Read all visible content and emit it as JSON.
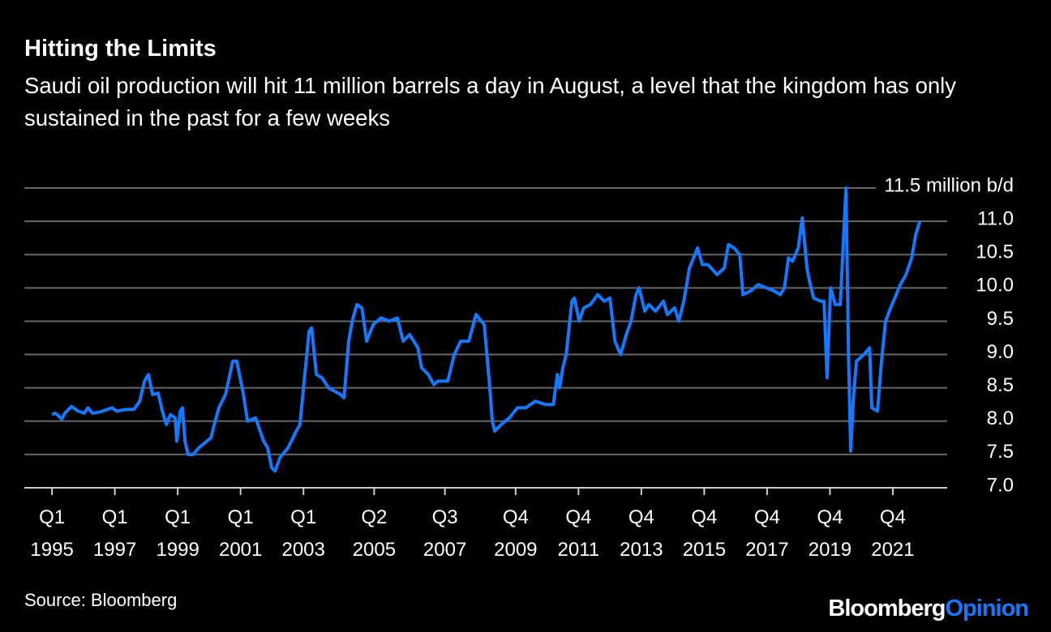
{
  "chart_data": {
    "type": "line",
    "title": "Hitting the Limits",
    "subtitle": "Saudi oil production will hit 11 million barrels a day in August, a level that the kingdom has only sustained in the past for a few weeks",
    "source": "Source: Bloomberg",
    "logo": {
      "brand": "Bloomberg",
      "section": "Opinion"
    },
    "x": [
      1995.0,
      1995.1,
      1995.21,
      1995.31,
      1995.41,
      1995.62,
      1995.83,
      1996.03,
      1996.14,
      1996.29,
      1996.55,
      1996.91,
      1997.06,
      1997.27,
      1997.61,
      1997.79,
      1997.94,
      1998.07,
      1998.2,
      1998.38,
      1998.51,
      1998.64,
      1998.77,
      1998.92,
      1998.97,
      1999.08,
      1999.15,
      1999.23,
      1999.33,
      1999.49,
      1999.67,
      1999.93,
      2000.06,
      2000.19,
      2000.31,
      2000.52,
      2000.75,
      2000.88,
      2001.09,
      2001.22,
      2001.48,
      2001.73,
      2001.86,
      2001.99,
      2002.1,
      2002.25,
      2002.51,
      2002.77,
      2002.89,
      2003.02,
      2003.18,
      2003.26,
      2003.41,
      2003.59,
      2003.8,
      2004.18,
      2004.29,
      2004.44,
      2004.55,
      2004.7,
      2004.86,
      2005.01,
      2005.22,
      2005.47,
      2005.73,
      2005.99,
      2006.17,
      2006.38,
      2006.64,
      2006.76,
      2006.97,
      2007.15,
      2007.28,
      2007.59,
      2007.8,
      2008.0,
      2008.26,
      2008.49,
      2008.75,
      2008.91,
      2009.01,
      2009.09,
      2009.29,
      2009.55,
      2009.81,
      2010.07,
      2010.38,
      2010.69,
      2010.95,
      2011.08,
      2011.15,
      2011.25,
      2011.36,
      2011.54,
      2011.62,
      2011.77,
      2011.92,
      2012.13,
      2012.36,
      2012.57,
      2012.75,
      2012.91,
      2013.09,
      2013.27,
      2013.42,
      2013.58,
      2013.68,
      2013.86,
      2013.99,
      2014.2,
      2014.45,
      2014.58,
      2014.81,
      2014.94,
      2015.1,
      2015.28,
      2015.41,
      2015.54,
      2015.69,
      2015.87,
      2016.16,
      2016.39,
      2016.52,
      2016.7,
      2016.88,
      2016.98,
      2017.21,
      2017.47,
      2017.73,
      2017.99,
      2018.17,
      2018.3,
      2018.43,
      2018.56,
      2018.74,
      2018.87,
      2019.02,
      2019.1,
      2019.23,
      2019.46,
      2019.56,
      2019.66,
      2019.77,
      2019.92,
      2020.08,
      2020.26,
      2020.34,
      2020.41,
      2020.49,
      2020.59,
      2020.83,
      2021.01,
      2021.08,
      2021.26,
      2021.39,
      2021.52,
      2021.68,
      2021.86,
      2021.99,
      2022.17,
      2022.35,
      2022.48,
      2022.61
    ],
    "series": [
      {
        "name": "Saudi oil production",
        "color": "#1479ff",
        "values": [
          8.1,
          8.12,
          8.08,
          8.03,
          8.12,
          8.22,
          8.15,
          8.12,
          8.2,
          8.12,
          8.14,
          8.2,
          8.15,
          8.17,
          8.18,
          8.3,
          8.6,
          8.7,
          8.4,
          8.42,
          8.15,
          7.95,
          8.1,
          8.05,
          7.7,
          8.15,
          8.2,
          7.7,
          7.5,
          7.5,
          7.6,
          7.7,
          7.75,
          8.0,
          8.2,
          8.4,
          8.9,
          8.9,
          8.4,
          8.0,
          8.05,
          7.7,
          7.6,
          7.3,
          7.25,
          7.45,
          7.6,
          7.85,
          7.95,
          8.6,
          9.35,
          9.4,
          8.7,
          8.65,
          8.5,
          8.4,
          8.35,
          9.2,
          9.5,
          9.75,
          9.7,
          9.2,
          9.45,
          9.55,
          9.5,
          9.55,
          9.2,
          9.3,
          9.1,
          8.8,
          8.7,
          8.55,
          8.6,
          8.6,
          9.0,
          9.2,
          9.2,
          9.6,
          9.45,
          8.6,
          8.0,
          7.85,
          7.95,
          8.05,
          8.2,
          8.2,
          8.3,
          8.25,
          8.25,
          8.7,
          8.5,
          8.8,
          9.0,
          9.8,
          9.85,
          9.5,
          9.7,
          9.75,
          9.9,
          9.8,
          9.85,
          9.2,
          9.0,
          9.3,
          9.5,
          9.9,
          10.0,
          9.65,
          9.75,
          9.65,
          9.8,
          9.6,
          9.7,
          9.5,
          9.8,
          10.3,
          10.45,
          10.6,
          10.35,
          10.35,
          10.2,
          10.3,
          10.65,
          10.6,
          10.5,
          9.9,
          9.95,
          10.05,
          10.0,
          9.95,
          9.9,
          10.0,
          10.45,
          10.4,
          10.6,
          11.05,
          10.3,
          10.1,
          9.85,
          9.8,
          9.8,
          8.65,
          10.0,
          9.75,
          9.75,
          11.5,
          9.0,
          7.55,
          8.3,
          8.9,
          9.0,
          9.1,
          8.2,
          8.15,
          8.9,
          9.5,
          9.7,
          9.9,
          10.05,
          10.2,
          10.45,
          10.8,
          11.0
        ]
      }
    ],
    "xlim": [
      1994.12,
      2023.48
    ],
    "xticks": [
      {
        "value": 1995,
        "label": "Q1 1995"
      },
      {
        "value": 1997,
        "label": "Q1 1997"
      },
      {
        "value": 1999,
        "label": "Q1 1999"
      },
      {
        "value": 2001,
        "label": "Q1 2001"
      },
      {
        "value": 2003,
        "label": "Q1 2003"
      },
      {
        "value": 2005.25,
        "label": "Q2 2005"
      },
      {
        "value": 2007.5,
        "label": "Q3 2007"
      },
      {
        "value": 2009.75,
        "label": "Q4 2009"
      },
      {
        "value": 2011.75,
        "label": "Q4 2011"
      },
      {
        "value": 2013.75,
        "label": "Q4 2013"
      },
      {
        "value": 2015.75,
        "label": "Q4 2015"
      },
      {
        "value": 2017.75,
        "label": "Q4 2017"
      },
      {
        "value": 2019.75,
        "label": "Q4 2019"
      },
      {
        "value": 2021.75,
        "label": "Q4 2021"
      }
    ],
    "ylim": [
      7,
      11.5
    ],
    "yticks": [
      {
        "value": 7,
        "label": "7.0"
      },
      {
        "value": 7.5,
        "label": "7.5"
      },
      {
        "value": 8,
        "label": "8.0"
      },
      {
        "value": 8.5,
        "label": "8.5"
      },
      {
        "value": 9,
        "label": "9.0"
      },
      {
        "value": 9.5,
        "label": "9.5"
      },
      {
        "value": 10,
        "label": "10.0"
      },
      {
        "value": 10.5,
        "label": "10.5"
      },
      {
        "value": 11,
        "label": "11.0"
      },
      {
        "value": 11.5,
        "label": "11.5 million b/d"
      }
    ],
    "grid": true
  }
}
